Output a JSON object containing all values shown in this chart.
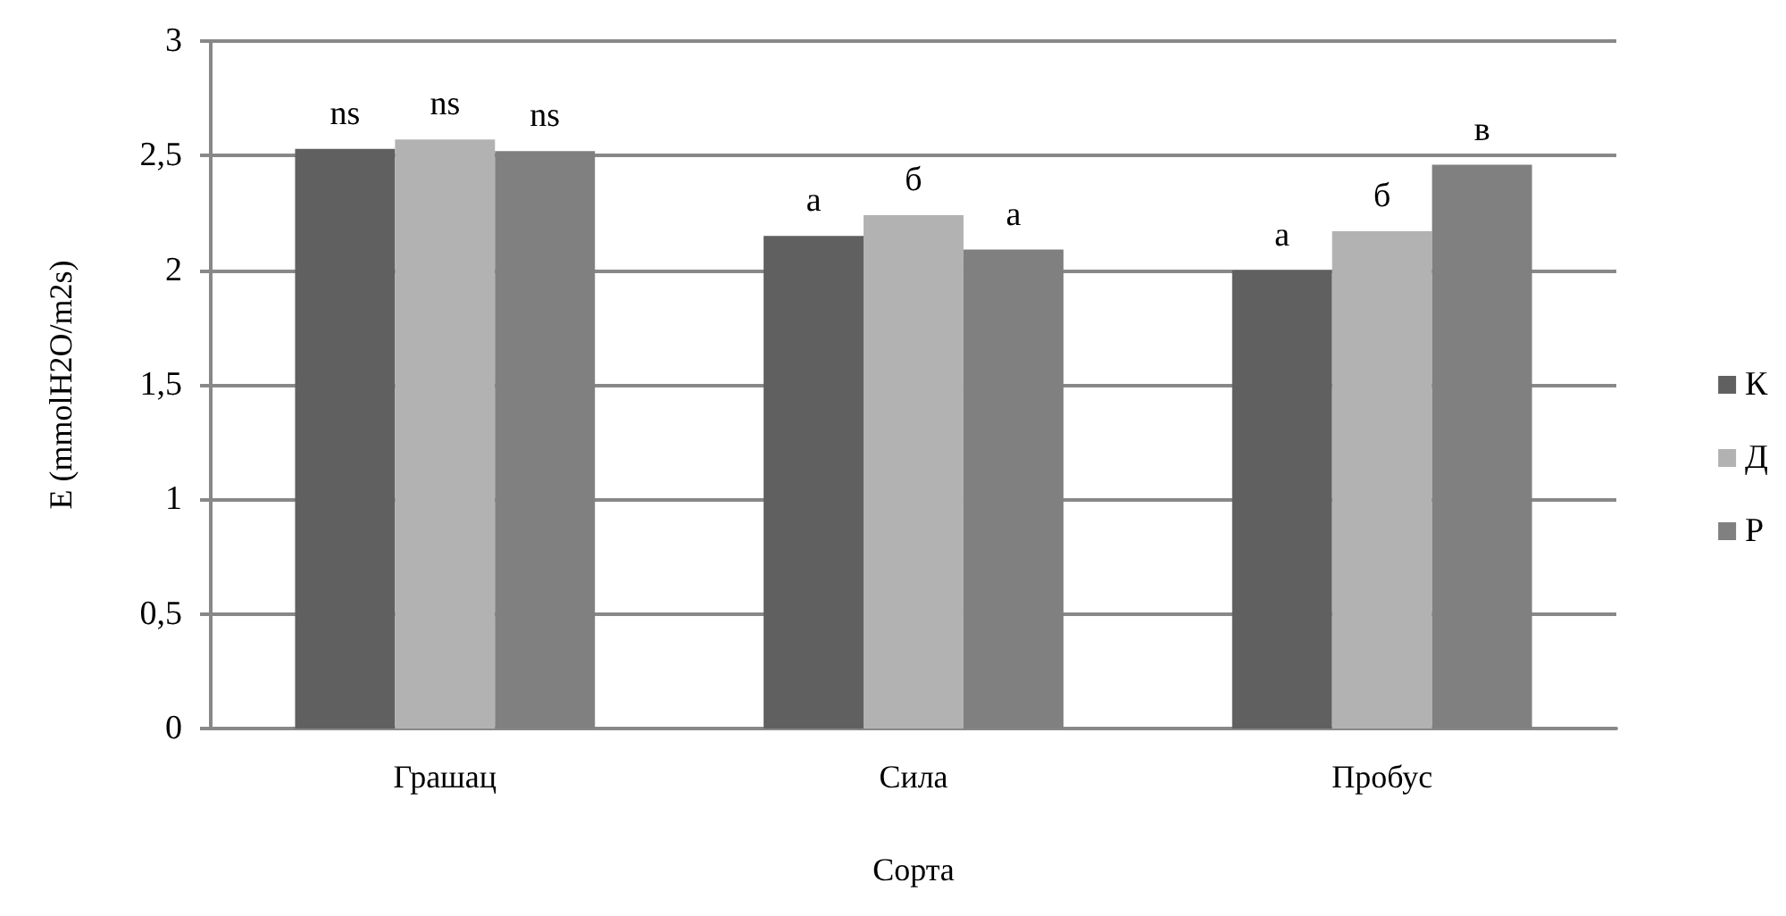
{
  "chart_data": {
    "type": "bar",
    "xlabel": "Сорта",
    "ylabel": "E (mmolH2O/m2s)",
    "categories": [
      "Грашац",
      "Сила",
      "Пробус"
    ],
    "series": [
      {
        "name": "К",
        "color": "#606060",
        "values": [
          2.53,
          2.15,
          2.0
        ],
        "value_labels": [
          "ns",
          "а",
          "а"
        ]
      },
      {
        "name": "Д",
        "color": "#b2b2b2",
        "values": [
          2.57,
          2.24,
          2.17
        ],
        "value_labels": [
          "ns",
          "б",
          "б"
        ]
      },
      {
        "name": "Р",
        "color": "#808080",
        "values": [
          2.52,
          2.09,
          2.46
        ],
        "value_labels": [
          "ns",
          "а",
          "в"
        ]
      }
    ],
    "ylim": [
      0,
      3
    ],
    "yticks": [
      {
        "value": 0,
        "label": "0"
      },
      {
        "value": 0.5,
        "label": "0,5"
      },
      {
        "value": 1,
        "label": "1"
      },
      {
        "value": 1.5,
        "label": "1,5"
      },
      {
        "value": 2,
        "label": "2"
      },
      {
        "value": 2.5,
        "label": "2,5"
      },
      {
        "value": 3,
        "label": "3"
      }
    ],
    "grid": "y",
    "legend": "right"
  }
}
